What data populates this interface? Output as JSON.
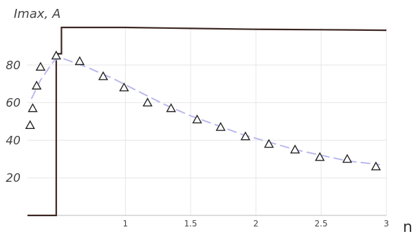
{
  "chart_data": {
    "type": "line",
    "title": "",
    "ylabel": "Imax, A",
    "xlabel": "n",
    "xlim": [
      0.25,
      3.0
    ],
    "ylim": [
      0,
      100
    ],
    "grid": true,
    "xticks": [
      1,
      1.5,
      2,
      2.5,
      3
    ],
    "xtick_labels": [
      "1",
      "1.5",
      "2",
      "2.5",
      "3"
    ],
    "yticks": [
      20,
      40,
      60,
      80
    ],
    "ytick_labels": [
      "20",
      "40",
      "60",
      "80"
    ],
    "series": [
      {
        "style": "solid-step",
        "color": "#3a2420",
        "x": [
          0.25,
          0.47,
          0.47,
          0.51,
          0.51,
          1.0,
          1.5,
          2.0,
          2.5,
          3.0
        ],
        "y": [
          0,
          0,
          86,
          86,
          100,
          100,
          99.5,
          99,
          98.8,
          98.5
        ]
      },
      {
        "style": "dashed-fit",
        "color": "#b8b8ee",
        "x": [
          0.28,
          0.35,
          0.45,
          0.5,
          0.7,
          0.9,
          1.1,
          1.3,
          1.5,
          1.7,
          1.9,
          2.1,
          2.3,
          2.5,
          2.7,
          2.95
        ],
        "y": [
          62,
          72,
          82,
          84,
          79,
          73,
          66,
          59,
          53,
          48,
          43,
          39,
          35,
          32,
          29,
          27
        ]
      },
      {
        "style": "triangle-markers",
        "color": "#222222",
        "x": [
          0.27,
          0.29,
          0.32,
          0.35,
          0.47,
          0.65,
          0.83,
          0.99,
          1.17,
          1.35,
          1.55,
          1.73,
          1.92,
          2.1,
          2.3,
          2.49,
          2.7,
          2.92
        ],
        "y": [
          48,
          57,
          69,
          79,
          85,
          82,
          74,
          68,
          60,
          57,
          51,
          47,
          42,
          38,
          35,
          31,
          30,
          26
        ]
      }
    ]
  }
}
